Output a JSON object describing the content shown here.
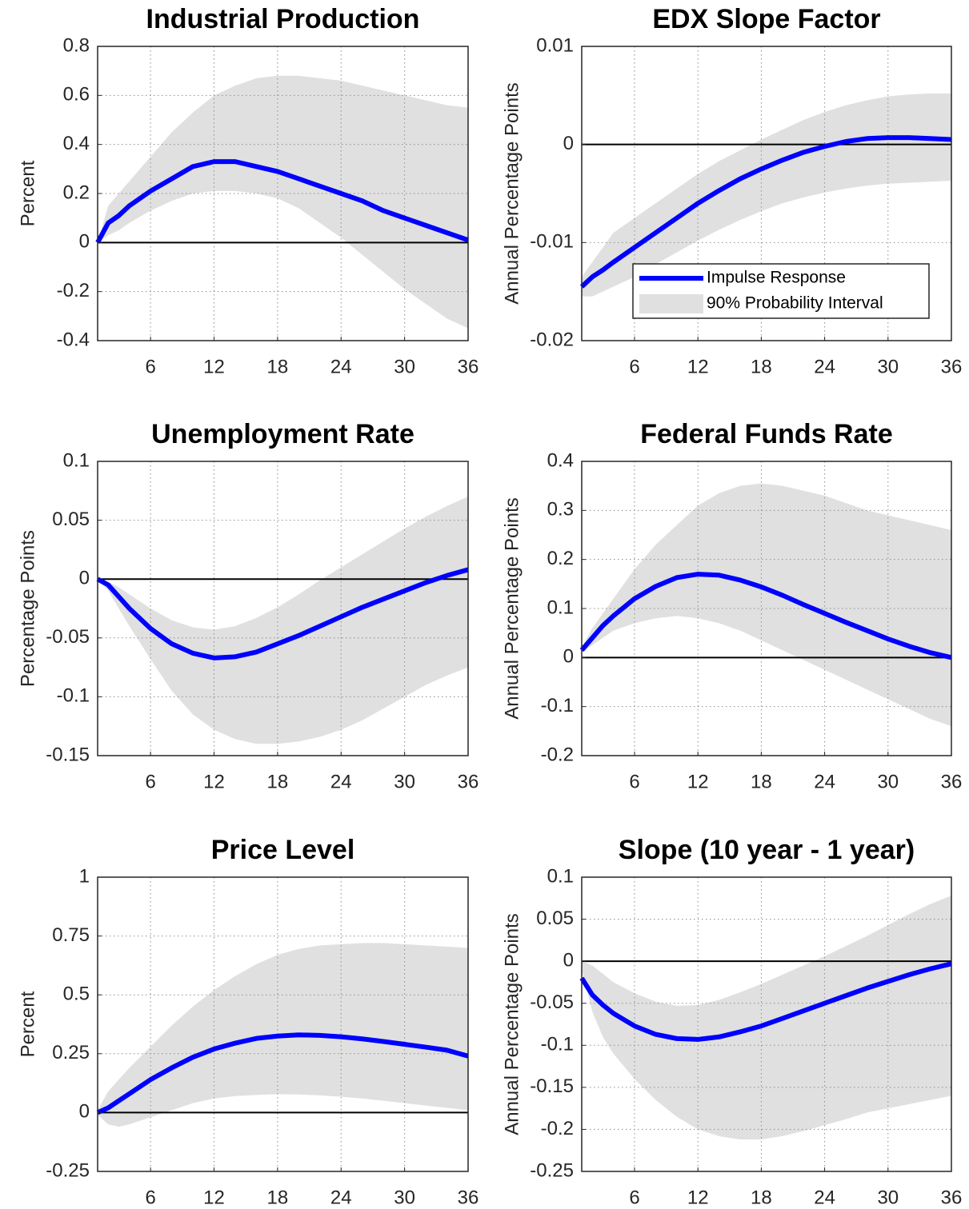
{
  "chart_data": [
    {
      "type": "line",
      "title": "Industrial Production",
      "ylabel": "Percent",
      "x": [
        1,
        2,
        3,
        4,
        6,
        8,
        10,
        12,
        14,
        16,
        18,
        20,
        22,
        24,
        26,
        28,
        30,
        32,
        34,
        36
      ],
      "xlim": [
        1,
        36
      ],
      "xticks": [
        6,
        12,
        18,
        24,
        30,
        36
      ],
      "ylim": [
        -0.4,
        0.8
      ],
      "yticks": [
        -0.4,
        -0.2,
        0,
        0.2,
        0.4,
        0.6,
        0.8
      ],
      "grid": true,
      "zero_line": true,
      "series": [
        {
          "type": "band",
          "color": "#e0e0e0",
          "upper": [
            0,
            0.15,
            0.2,
            0.25,
            0.35,
            0.45,
            0.53,
            0.6,
            0.64,
            0.67,
            0.68,
            0.68,
            0.67,
            0.66,
            0.64,
            0.62,
            0.6,
            0.58,
            0.56,
            0.55
          ],
          "lower": [
            0,
            0.03,
            0.05,
            0.08,
            0.13,
            0.17,
            0.2,
            0.21,
            0.21,
            0.2,
            0.18,
            0.14,
            0.08,
            0.02,
            -0.05,
            -0.12,
            -0.19,
            -0.25,
            -0.31,
            -0.35
          ]
        },
        {
          "color": "#0000ff",
          "values": [
            0,
            0.08,
            0.11,
            0.15,
            0.21,
            0.26,
            0.31,
            0.33,
            0.33,
            0.31,
            0.29,
            0.26,
            0.23,
            0.2,
            0.17,
            0.13,
            0.1,
            0.07,
            0.04,
            0.01
          ]
        }
      ]
    },
    {
      "type": "line",
      "title": "EDX Slope Factor",
      "ylabel": "Annual Percentage Points",
      "x": [
        1,
        2,
        3,
        4,
        6,
        8,
        10,
        12,
        14,
        16,
        18,
        20,
        22,
        24,
        26,
        28,
        30,
        32,
        34,
        36
      ],
      "xlim": [
        1,
        36
      ],
      "xticks": [
        6,
        12,
        18,
        24,
        30,
        36
      ],
      "ylim": [
        -0.02,
        0.01
      ],
      "yticks": [
        -0.02,
        -0.01,
        0,
        0.01
      ],
      "grid": true,
      "zero_line": true,
      "legend": "southeast",
      "series": [
        {
          "name": "90% Probability Interval",
          "type": "band",
          "color": "#e0e0e0",
          "upper": [
            -0.0135,
            -0.012,
            -0.0105,
            -0.009,
            -0.0075,
            -0.006,
            -0.0045,
            -0.003,
            -0.0017,
            -0.0006,
            0.0005,
            0.0015,
            0.0025,
            0.0033,
            0.004,
            0.0045,
            0.0049,
            0.0051,
            0.0052,
            0.0052
          ],
          "lower": [
            -0.0155,
            -0.0155,
            -0.015,
            -0.0145,
            -0.0135,
            -0.0122,
            -0.011,
            -0.0098,
            -0.0087,
            -0.0077,
            -0.0068,
            -0.006,
            -0.0054,
            -0.0049,
            -0.0045,
            -0.0042,
            -0.004,
            -0.0039,
            -0.0038,
            -0.0037
          ]
        },
        {
          "name": "Impulse Response",
          "color": "#0000ff",
          "values": [
            -0.0145,
            -0.0135,
            -0.0128,
            -0.012,
            -0.0105,
            -0.009,
            -0.0075,
            -0.006,
            -0.0047,
            -0.0035,
            -0.0025,
            -0.0016,
            -0.0008,
            -0.0002,
            0.0003,
            0.0006,
            0.0007,
            0.0007,
            0.0006,
            0.0005
          ]
        }
      ]
    },
    {
      "type": "line",
      "title": "Unemployment Rate",
      "ylabel": "Percentage Points",
      "x": [
        1,
        2,
        3,
        4,
        6,
        8,
        10,
        12,
        14,
        16,
        18,
        20,
        22,
        24,
        26,
        28,
        30,
        32,
        34,
        36
      ],
      "xlim": [
        1,
        36
      ],
      "xticks": [
        6,
        12,
        18,
        24,
        30,
        36
      ],
      "ylim": [
        -0.15,
        0.1
      ],
      "yticks": [
        -0.15,
        -0.1,
        -0.05,
        0,
        0.05,
        0.1
      ],
      "grid": true,
      "zero_line": true,
      "series": [
        {
          "type": "band",
          "color": "#e0e0e0",
          "upper": [
            0,
            -0.002,
            -0.007,
            -0.013,
            -0.025,
            -0.035,
            -0.041,
            -0.043,
            -0.04,
            -0.033,
            -0.024,
            -0.013,
            -0.001,
            0.01,
            0.021,
            0.032,
            0.043,
            0.053,
            0.062,
            0.07
          ],
          "lower": [
            0,
            -0.01,
            -0.025,
            -0.04,
            -0.068,
            -0.095,
            -0.115,
            -0.128,
            -0.136,
            -0.14,
            -0.14,
            -0.138,
            -0.134,
            -0.128,
            -0.12,
            -0.11,
            -0.1,
            -0.09,
            -0.082,
            -0.075
          ]
        },
        {
          "color": "#0000ff",
          "values": [
            0,
            -0.005,
            -0.015,
            -0.025,
            -0.042,
            -0.055,
            -0.063,
            -0.067,
            -0.066,
            -0.062,
            -0.055,
            -0.048,
            -0.04,
            -0.032,
            -0.024,
            -0.017,
            -0.01,
            -0.003,
            0.003,
            0.008
          ]
        }
      ]
    },
    {
      "type": "line",
      "title": "Federal Funds Rate",
      "ylabel": "Annual Percentage Points",
      "x": [
        1,
        2,
        3,
        4,
        6,
        8,
        10,
        12,
        14,
        16,
        18,
        20,
        22,
        24,
        26,
        28,
        30,
        32,
        34,
        36
      ],
      "xlim": [
        1,
        36
      ],
      "xticks": [
        6,
        12,
        18,
        24,
        30,
        36
      ],
      "ylim": [
        -0.2,
        0.4
      ],
      "yticks": [
        -0.2,
        -0.1,
        0,
        0.1,
        0.2,
        0.3,
        0.4
      ],
      "grid": true,
      "zero_line": true,
      "series": [
        {
          "type": "band",
          "color": "#e0e0e0",
          "upper": [
            0.02,
            0.06,
            0.09,
            0.12,
            0.18,
            0.23,
            0.27,
            0.31,
            0.335,
            0.35,
            0.355,
            0.35,
            0.34,
            0.33,
            0.315,
            0.3,
            0.29,
            0.28,
            0.27,
            0.26
          ],
          "lower": [
            0.01,
            0.025,
            0.04,
            0.055,
            0.07,
            0.08,
            0.085,
            0.08,
            0.07,
            0.055,
            0.035,
            0.015,
            -0.005,
            -0.025,
            -0.045,
            -0.065,
            -0.085,
            -0.105,
            -0.125,
            -0.14
          ]
        },
        {
          "color": "#0000ff",
          "values": [
            0.015,
            0.04,
            0.065,
            0.085,
            0.12,
            0.145,
            0.163,
            0.17,
            0.168,
            0.158,
            0.144,
            0.127,
            0.108,
            0.09,
            0.072,
            0.055,
            0.038,
            0.023,
            0.01,
            0
          ]
        }
      ]
    },
    {
      "type": "line",
      "title": "Price Level",
      "ylabel": "Percent",
      "x": [
        1,
        2,
        3,
        4,
        6,
        8,
        10,
        12,
        14,
        16,
        18,
        20,
        22,
        24,
        26,
        28,
        30,
        32,
        34,
        36
      ],
      "xlim": [
        1,
        36
      ],
      "xticks": [
        6,
        12,
        18,
        24,
        30,
        36
      ],
      "ylim": [
        -0.25,
        1
      ],
      "yticks": [
        -0.25,
        0,
        0.25,
        0.5,
        0.75,
        1
      ],
      "grid": true,
      "zero_line": true,
      "series": [
        {
          "type": "band",
          "color": "#e0e0e0",
          "upper": [
            0.01,
            0.09,
            0.14,
            0.19,
            0.28,
            0.37,
            0.45,
            0.52,
            0.58,
            0.63,
            0.67,
            0.695,
            0.71,
            0.715,
            0.72,
            0.72,
            0.715,
            0.71,
            0.705,
            0.7
          ],
          "lower": [
            -0.01,
            -0.05,
            -0.06,
            -0.05,
            -0.02,
            0.01,
            0.04,
            0.06,
            0.07,
            0.075,
            0.078,
            0.077,
            0.073,
            0.067,
            0.06,
            0.05,
            0.04,
            0.03,
            0.02,
            0.01
          ]
        },
        {
          "color": "#0000ff",
          "values": [
            0,
            0.02,
            0.05,
            0.08,
            0.14,
            0.19,
            0.235,
            0.27,
            0.295,
            0.315,
            0.325,
            0.33,
            0.328,
            0.322,
            0.313,
            0.302,
            0.29,
            0.278,
            0.265,
            0.24
          ]
        }
      ]
    },
    {
      "type": "line",
      "title": "Slope (10 year - 1 year)",
      "ylabel": "Annual Percentage Points",
      "x": [
        1,
        2,
        3,
        4,
        6,
        8,
        10,
        12,
        14,
        16,
        18,
        20,
        22,
        24,
        26,
        28,
        30,
        32,
        34,
        36
      ],
      "xlim": [
        1,
        36
      ],
      "xticks": [
        6,
        12,
        18,
        24,
        30,
        36
      ],
      "ylim": [
        -0.25,
        0.1
      ],
      "yticks": [
        -0.25,
        -0.2,
        -0.15,
        -0.1,
        -0.05,
        0,
        0.05,
        0.1
      ],
      "grid": true,
      "zero_line": true,
      "series": [
        {
          "type": "band",
          "color": "#e0e0e0",
          "upper": [
            0,
            -0.005,
            -0.015,
            -0.025,
            -0.038,
            -0.048,
            -0.053,
            -0.052,
            -0.046,
            -0.037,
            -0.027,
            -0.016,
            -0.005,
            0.006,
            0.018,
            0.03,
            0.043,
            0.056,
            0.068,
            0.078
          ],
          "lower": [
            -0.01,
            -0.06,
            -0.09,
            -0.11,
            -0.14,
            -0.165,
            -0.185,
            -0.2,
            -0.208,
            -0.212,
            -0.212,
            -0.208,
            -0.202,
            -0.195,
            -0.188,
            -0.18,
            -0.175,
            -0.17,
            -0.165,
            -0.16
          ]
        },
        {
          "color": "#0000ff",
          "values": [
            -0.02,
            -0.04,
            -0.052,
            -0.062,
            -0.077,
            -0.087,
            -0.092,
            -0.093,
            -0.09,
            -0.084,
            -0.077,
            -0.068,
            -0.059,
            -0.05,
            -0.041,
            -0.032,
            -0.024,
            -0.016,
            -0.009,
            -0.003
          ]
        }
      ]
    }
  ]
}
